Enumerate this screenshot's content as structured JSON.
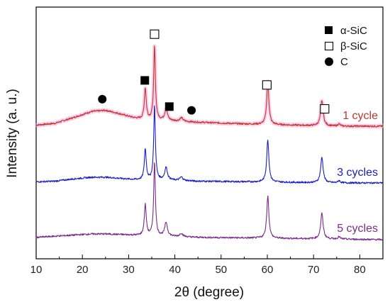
{
  "chart_data": {
    "type": "line",
    "title": "",
    "xlabel": "2θ (degree)",
    "ylabel": "Intensity (a. u.)",
    "xlim": [
      10,
      85
    ],
    "x_ticks": [
      10,
      20,
      30,
      40,
      50,
      60,
      70,
      80
    ],
    "y_ticks_shown": false,
    "grid": false,
    "legend": {
      "placement": "top-right",
      "entries": [
        {
          "label": "α-SiC",
          "marker": "filled-square"
        },
        {
          "label": "β-SiC",
          "marker": "open-square"
        },
        {
          "label": "C",
          "marker": "filled-circle"
        }
      ]
    },
    "series": [
      {
        "label": "1 cycle",
        "color": "#c0392b",
        "offset": 2.0,
        "baseline": [
          [
            10,
            0.02
          ],
          [
            14,
            0.05
          ],
          [
            18,
            0.15
          ],
          [
            22,
            0.26
          ],
          [
            25,
            0.28
          ],
          [
            28,
            0.22
          ],
          [
            31,
            0.15
          ],
          [
            33,
            0.12
          ],
          [
            38,
            0.1
          ],
          [
            45,
            0.07
          ],
          [
            55,
            0.04
          ],
          [
            65,
            0.02
          ],
          [
            75,
            0.0
          ],
          [
            85,
            0.0
          ]
        ],
        "peaks": [
          [
            33.6,
            0.55,
            0.25
          ],
          [
            35.6,
            1.3,
            0.22
          ],
          [
            38.1,
            0.2,
            0.35
          ],
          [
            41.4,
            0.06,
            0.4
          ],
          [
            60.1,
            0.75,
            0.28
          ],
          [
            71.8,
            0.45,
            0.32
          ],
          [
            75.5,
            0.04,
            0.3
          ]
        ]
      },
      {
        "label": "3 cycles",
        "color": "#1c1cc8",
        "offset": 1.0,
        "baseline": [
          [
            10,
            0.02
          ],
          [
            14,
            0.03
          ],
          [
            18,
            0.07
          ],
          [
            22,
            0.1
          ],
          [
            25,
            0.1
          ],
          [
            28,
            0.08
          ],
          [
            31,
            0.06
          ],
          [
            33,
            0.05
          ],
          [
            38,
            0.05
          ],
          [
            45,
            0.03
          ],
          [
            55,
            0.02
          ],
          [
            65,
            0.01
          ],
          [
            75,
            0.0
          ],
          [
            85,
            0.0
          ]
        ],
        "peaks": [
          [
            33.6,
            0.55,
            0.25
          ],
          [
            35.6,
            1.3,
            0.22
          ],
          [
            38.1,
            0.22,
            0.35
          ],
          [
            41.4,
            0.06,
            0.4
          ],
          [
            60.1,
            0.75,
            0.28
          ],
          [
            71.8,
            0.45,
            0.32
          ],
          [
            75.5,
            0.04,
            0.3
          ]
        ]
      },
      {
        "label": "5 cycles",
        "color": "#7b2a8e",
        "offset": 0.0,
        "baseline": [
          [
            10,
            0.04
          ],
          [
            14,
            0.06
          ],
          [
            18,
            0.08
          ],
          [
            22,
            0.1
          ],
          [
            25,
            0.1
          ],
          [
            28,
            0.09
          ],
          [
            31,
            0.08
          ],
          [
            33,
            0.07
          ],
          [
            38,
            0.06
          ],
          [
            45,
            0.04
          ],
          [
            55,
            0.03
          ],
          [
            65,
            0.02
          ],
          [
            75,
            0.01
          ],
          [
            85,
            0.0
          ]
        ],
        "peaks": [
          [
            33.6,
            0.55,
            0.25
          ],
          [
            35.6,
            1.3,
            0.22
          ],
          [
            38.1,
            0.24,
            0.35
          ],
          [
            41.4,
            0.06,
            0.4
          ],
          [
            60.1,
            0.75,
            0.28
          ],
          [
            71.8,
            0.45,
            0.32
          ],
          [
            75.5,
            0.04,
            0.3
          ]
        ]
      }
    ],
    "annotations": [
      {
        "phase": "C",
        "marker": "filled-circle",
        "x": 24.3,
        "above": "1 cycle"
      },
      {
        "phase": "α-SiC",
        "marker": "filled-square",
        "x": 33.5,
        "above": "1 cycle"
      },
      {
        "phase": "β-SiC",
        "marker": "open-square",
        "x": 35.6,
        "above": "1 cycle"
      },
      {
        "phase": "α-SiC",
        "marker": "filled-square",
        "x": 38.8,
        "above": "1 cycle"
      },
      {
        "phase": "C",
        "marker": "filled-circle",
        "x": 43.6,
        "above": "1 cycle"
      },
      {
        "phase": "β-SiC",
        "marker": "open-square",
        "x": 59.9,
        "above": "1 cycle"
      },
      {
        "phase": "β-SiC",
        "marker": "open-square",
        "x": 72.4,
        "above": "1 cycle"
      }
    ]
  }
}
